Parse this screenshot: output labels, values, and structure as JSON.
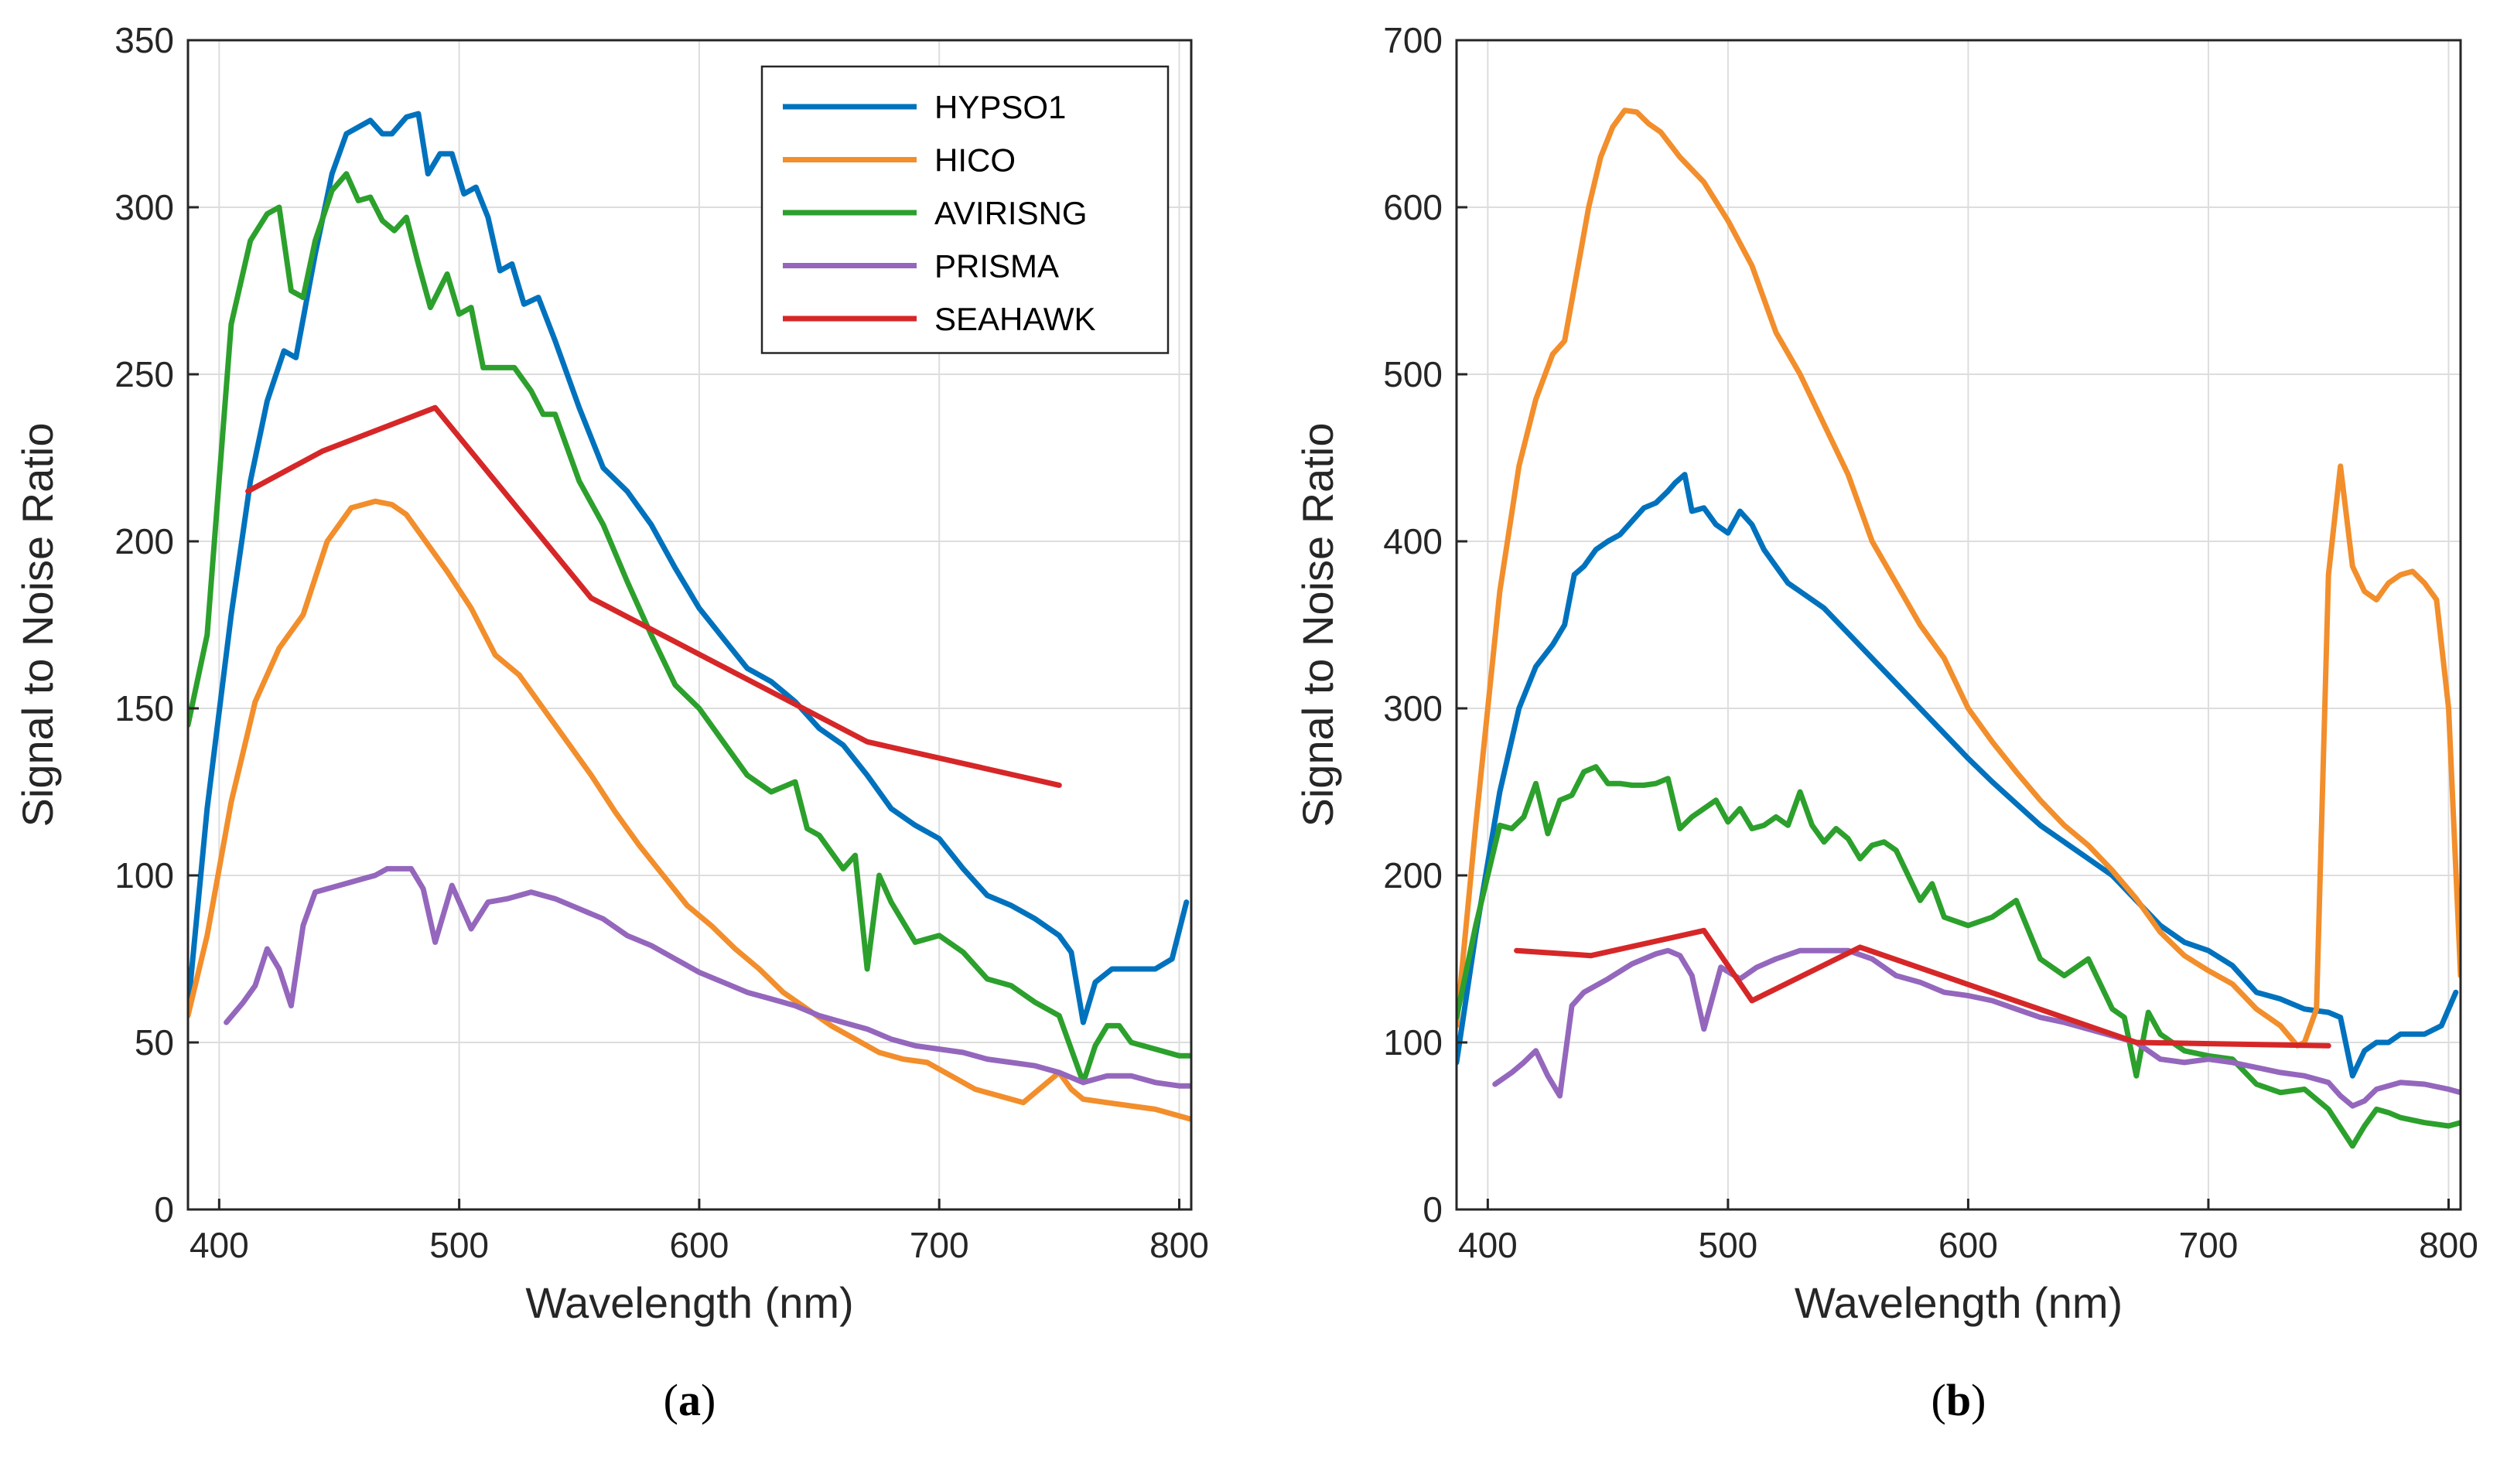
{
  "colors": {
    "HYPSO1": "#0072BD",
    "HICO": "#F28E2B",
    "AVIRISNG": "#2CA02C",
    "PRISMA": "#9467BD",
    "SEAHAWK": "#D62728",
    "grid": "#dddddd",
    "axis": "#262626"
  },
  "chart_data": [
    {
      "type": "line",
      "panel": "a",
      "caption_label": "a",
      "xlabel": "Wavelength (nm)",
      "ylabel": "Signal to Noise Ratio",
      "xlim": [
        387,
        805
      ],
      "ylim": [
        0,
        350
      ],
      "xticks": [
        400,
        500,
        600,
        700,
        800
      ],
      "yticks": [
        0,
        50,
        100,
        150,
        200,
        250,
        300,
        350
      ],
      "grid": true,
      "legend": {
        "placement": "top-right",
        "entries": [
          "HYPSO1",
          "HICO",
          "AVIRISNG",
          "PRISMA",
          "SEAHAWK"
        ]
      },
      "series": [
        {
          "name": "HYPSO1",
          "x": [
            387,
            395,
            405,
            413,
            420,
            427,
            432,
            440,
            447,
            453,
            458,
            463,
            468,
            472,
            478,
            483,
            487,
            492,
            497,
            502,
            507,
            512,
            517,
            522,
            527,
            533,
            540,
            550,
            560,
            570,
            580,
            590,
            600,
            610,
            620,
            630,
            640,
            650,
            660,
            670,
            680,
            690,
            700,
            710,
            720,
            730,
            740,
            750,
            755,
            760,
            765,
            772,
            780,
            790,
            797,
            803
          ],
          "y": [
            60,
            120,
            178,
            218,
            242,
            257,
            255,
            286,
            310,
            322,
            324,
            326,
            322,
            322,
            327,
            328,
            310,
            316,
            316,
            304,
            306,
            297,
            281,
            283,
            271,
            273,
            260,
            240,
            222,
            215,
            205,
            192,
            180,
            171,
            162,
            158,
            152,
            144,
            139,
            130,
            120,
            115,
            111,
            102,
            94,
            91,
            87,
            82,
            77,
            56,
            68,
            72,
            72,
            72,
            75,
            92
          ]
        },
        {
          "name": "HICO",
          "x": [
            387,
            395,
            405,
            415,
            425,
            435,
            445,
            455,
            465,
            472,
            478,
            485,
            495,
            505,
            515,
            525,
            535,
            545,
            555,
            565,
            575,
            585,
            595,
            605,
            615,
            625,
            635,
            645,
            655,
            665,
            675,
            685,
            695,
            705,
            715,
            725,
            735,
            745,
            750,
            755,
            760,
            770,
            780,
            790,
            800,
            805
          ],
          "y": [
            58,
            82,
            122,
            152,
            168,
            178,
            200,
            210,
            212,
            211,
            208,
            201,
            191,
            180,
            166,
            160,
            150,
            140,
            130,
            119,
            109,
            100,
            91,
            85,
            78,
            72,
            65,
            60,
            55,
            51,
            47,
            45,
            44,
            40,
            36,
            34,
            32,
            38,
            41,
            36,
            33,
            32,
            31,
            30,
            28,
            27
          ]
        },
        {
          "name": "AVIRISNG",
          "x": [
            387,
            395,
            405,
            413,
            420,
            425,
            430,
            435,
            440,
            447,
            453,
            458,
            463,
            468,
            473,
            478,
            483,
            488,
            495,
            500,
            505,
            510,
            517,
            523,
            530,
            535,
            540,
            550,
            560,
            570,
            580,
            590,
            600,
            610,
            620,
            630,
            640,
            645,
            650,
            660,
            665,
            670,
            675,
            680,
            690,
            700,
            710,
            720,
            730,
            740,
            750,
            760,
            765,
            770,
            775,
            780,
            790,
            800,
            805
          ],
          "y": [
            145,
            172,
            265,
            290,
            298,
            300,
            275,
            273,
            290,
            305,
            310,
            302,
            303,
            296,
            293,
            297,
            283,
            270,
            280,
            268,
            270,
            252,
            252,
            252,
            245,
            238,
            238,
            218,
            205,
            188,
            172,
            157,
            150,
            140,
            130,
            125,
            128,
            114,
            112,
            102,
            106,
            72,
            100,
            92,
            80,
            82,
            77,
            69,
            67,
            62,
            58,
            38,
            49,
            55,
            55,
            50,
            48,
            46,
            46
          ]
        },
        {
          "name": "PRISMA",
          "x": [
            403,
            410,
            415,
            420,
            425,
            430,
            435,
            440,
            450,
            460,
            465,
            470,
            475,
            480,
            485,
            490,
            497,
            505,
            512,
            520,
            530,
            540,
            550,
            560,
            570,
            580,
            590,
            600,
            610,
            620,
            630,
            640,
            650,
            660,
            670,
            680,
            690,
            700,
            710,
            720,
            730,
            740,
            750,
            760,
            770,
            780,
            790,
            800,
            805
          ],
          "y": [
            56,
            62,
            67,
            78,
            72,
            61,
            85,
            95,
            97,
            99,
            100,
            102,
            102,
            102,
            96,
            80,
            97,
            84,
            92,
            93,
            95,
            93,
            90,
            87,
            82,
            79,
            75,
            71,
            68,
            65,
            63,
            61,
            58,
            56,
            54,
            51,
            49,
            48,
            47,
            45,
            44,
            43,
            41,
            38,
            40,
            40,
            38,
            37,
            37
          ]
        },
        {
          "name": "SEAHAWK",
          "x": [
            412,
            443,
            490,
            555,
            670,
            750
          ],
          "y": [
            215,
            227,
            240,
            183,
            140,
            127
          ]
        }
      ]
    },
    {
      "type": "line",
      "panel": "b",
      "caption_label": "b",
      "xlabel": "Wavelength (nm)",
      "ylabel": "Signal to Noise Ratio",
      "xlim": [
        387,
        805
      ],
      "ylim": [
        0,
        700
      ],
      "xticks": [
        400,
        500,
        600,
        700,
        800
      ],
      "yticks": [
        0,
        100,
        200,
        300,
        400,
        500,
        600,
        700
      ],
      "grid": true,
      "series": [
        {
          "name": "HYPSO1",
          "x": [
            387,
            395,
            405,
            413,
            420,
            427,
            432,
            436,
            440,
            445,
            450,
            455,
            460,
            465,
            470,
            475,
            478,
            482,
            485,
            490,
            495,
            500,
            505,
            510,
            515,
            520,
            525,
            530,
            540,
            550,
            560,
            570,
            580,
            590,
            600,
            610,
            620,
            630,
            640,
            650,
            660,
            670,
            680,
            690,
            700,
            710,
            720,
            730,
            740,
            750,
            755,
            760,
            765,
            770,
            775,
            780,
            790,
            797,
            803
          ],
          "y": [
            88,
            165,
            250,
            300,
            325,
            338,
            350,
            380,
            385,
            395,
            400,
            404,
            412,
            420,
            423,
            430,
            435,
            440,
            418,
            420,
            410,
            405,
            418,
            410,
            395,
            385,
            375,
            370,
            360,
            345,
            330,
            315,
            300,
            285,
            270,
            256,
            243,
            230,
            220,
            210,
            200,
            185,
            170,
            160,
            155,
            146,
            130,
            126,
            120,
            118,
            115,
            80,
            95,
            100,
            100,
            105,
            105,
            110,
            130
          ]
        },
        {
          "name": "HICO",
          "x": [
            387,
            395,
            405,
            413,
            420,
            427,
            432,
            437,
            442,
            447,
            452,
            457,
            462,
            467,
            472,
            480,
            490,
            500,
            510,
            520,
            530,
            540,
            550,
            560,
            570,
            580,
            590,
            600,
            610,
            620,
            630,
            640,
            650,
            660,
            670,
            680,
            690,
            700,
            710,
            720,
            730,
            737,
            740,
            745,
            750,
            755,
            760,
            765,
            770,
            775,
            780,
            785,
            790,
            795,
            800,
            805
          ],
          "y": [
            110,
            230,
            370,
            445,
            485,
            512,
            520,
            560,
            600,
            630,
            648,
            658,
            657,
            650,
            645,
            630,
            615,
            592,
            565,
            525,
            500,
            470,
            440,
            400,
            375,
            350,
            330,
            300,
            280,
            262,
            245,
            230,
            218,
            203,
            186,
            166,
            152,
            143,
            135,
            120,
            110,
            98,
            100,
            120,
            380,
            445,
            385,
            370,
            365,
            375,
            380,
            382,
            375,
            365,
            300,
            140
          ]
        },
        {
          "name": "AVIRISNG",
          "x": [
            387,
            395,
            405,
            410,
            415,
            420,
            425,
            430,
            435,
            440,
            445,
            450,
            455,
            460,
            465,
            470,
            475,
            480,
            485,
            490,
            495,
            500,
            505,
            510,
            515,
            520,
            525,
            530,
            535,
            540,
            545,
            550,
            555,
            560,
            565,
            570,
            575,
            580,
            585,
            590,
            600,
            610,
            620,
            630,
            640,
            650,
            660,
            665,
            670,
            675,
            680,
            690,
            700,
            710,
            720,
            730,
            740,
            750,
            760,
            765,
            770,
            775,
            780,
            790,
            800,
            805
          ],
          "y": [
            115,
            170,
            230,
            228,
            235,
            255,
            225,
            245,
            248,
            262,
            265,
            255,
            255,
            254,
            254,
            255,
            258,
            228,
            235,
            240,
            245,
            232,
            240,
            228,
            230,
            235,
            230,
            250,
            230,
            220,
            228,
            222,
            210,
            218,
            220,
            215,
            200,
            185,
            195,
            175,
            170,
            175,
            185,
            150,
            140,
            150,
            120,
            115,
            80,
            118,
            105,
            95,
            92,
            90,
            75,
            70,
            72,
            60,
            38,
            50,
            60,
            58,
            55,
            52,
            50,
            52
          ]
        },
        {
          "name": "PRISMA",
          "x": [
            403,
            410,
            415,
            420,
            425,
            430,
            435,
            440,
            450,
            460,
            465,
            470,
            475,
            480,
            485,
            490,
            497,
            505,
            512,
            520,
            530,
            540,
            550,
            560,
            570,
            580,
            590,
            600,
            610,
            620,
            630,
            640,
            650,
            660,
            670,
            680,
            690,
            700,
            710,
            720,
            730,
            740,
            750,
            755,
            760,
            765,
            770,
            780,
            790,
            800,
            805
          ],
          "y": [
            75,
            82,
            88,
            95,
            80,
            68,
            122,
            130,
            138,
            147,
            150,
            153,
            155,
            152,
            140,
            108,
            145,
            138,
            145,
            150,
            155,
            155,
            155,
            150,
            140,
            136,
            130,
            128,
            125,
            120,
            115,
            112,
            108,
            104,
            100,
            90,
            88,
            90,
            88,
            85,
            82,
            80,
            76,
            68,
            62,
            65,
            72,
            76,
            75,
            72,
            70
          ]
        },
        {
          "name": "SEAHAWK",
          "x": [
            412,
            443,
            490,
            510,
            555,
            670,
            750
          ],
          "y": [
            155,
            152,
            167,
            125,
            157,
            100,
            98
          ]
        }
      ]
    }
  ]
}
